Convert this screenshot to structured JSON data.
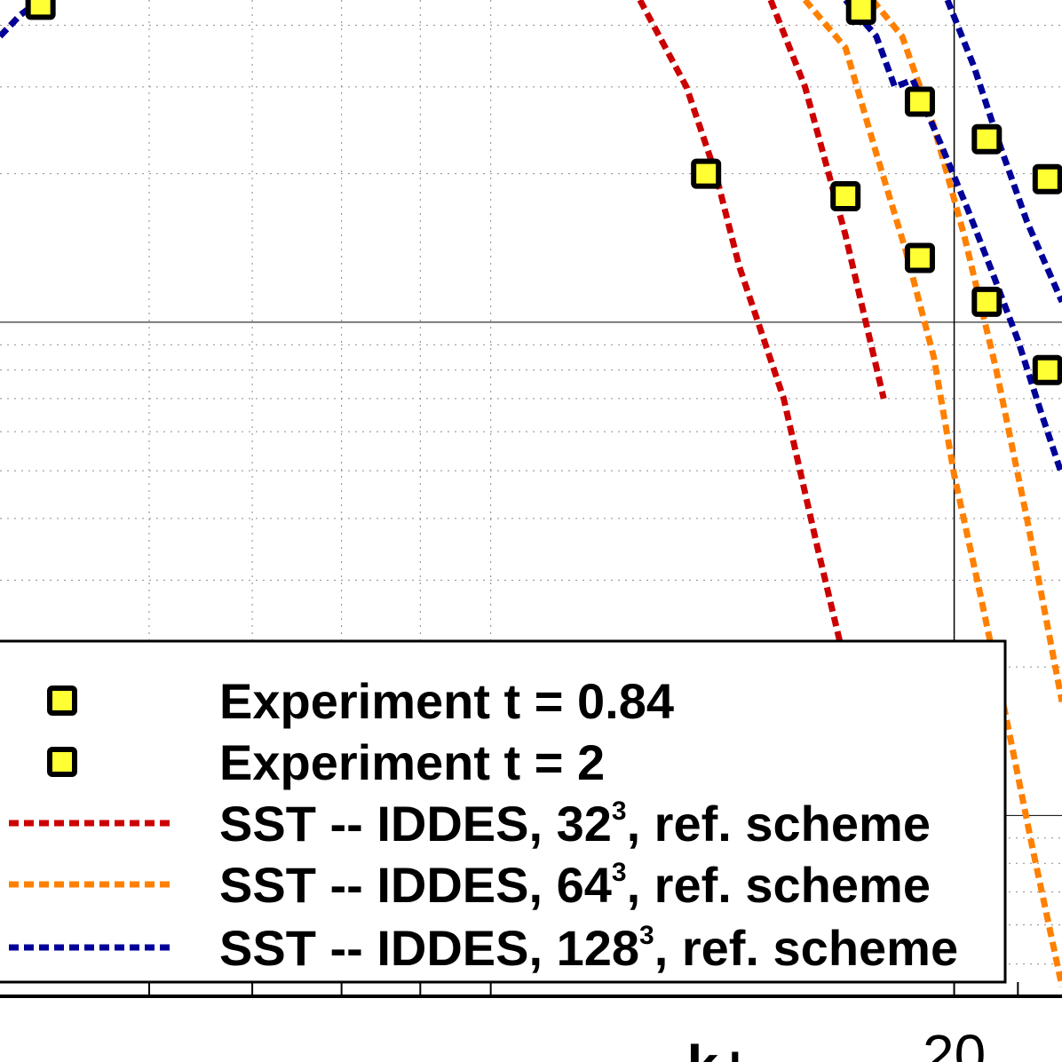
{
  "chart_data": {
    "type": "line",
    "title": "",
    "xlabel": "k+",
    "ylabel": "",
    "x_scale": "log",
    "y_scale": "log",
    "xlim": [
      4.8,
      23.5
    ],
    "ylim": [
      0.0043,
      0.45
    ],
    "x_tick_labels": [
      {
        "value": 20,
        "label": "20"
      }
    ],
    "grid": true,
    "legend_placement": "bottom-left",
    "colors": {
      "experiment_fill": "#ffff33",
      "experiment_edge": "#000000",
      "ref_32": "#cc0000",
      "ref_64": "#ff8000",
      "ref_128": "#000099"
    },
    "series": [
      {
        "name": "Experiment t = 0.84",
        "kind": "marker",
        "color": "#ffff33",
        "x": [
          5.1,
          13.8,
          17.4,
          19.0,
          21.0,
          23.0
        ],
        "y": [
          0.44,
          0.2,
          0.43,
          0.28,
          0.235,
          0.195
        ]
      },
      {
        "name": "Experiment t = 2",
        "kind": "marker",
        "color": "#ffff33",
        "x": [
          17.0,
          19.0,
          21.0,
          23.0
        ],
        "y": [
          0.18,
          0.135,
          0.11,
          0.08
        ]
      },
      {
        "name": "SST -- IDDES, 32",
        "exponent": "3",
        "suffix": ", ref. scheme",
        "kind": "dashed-line",
        "color": "#cc0000",
        "segments": [
          {
            "x": [
              4.8,
              4.95,
              5.1
            ],
            "y": [
              0.38,
              0.42,
              0.45
            ]
          },
          {
            "x": [
              12.5,
              13.4,
              14.0,
              14.5,
              15.5,
              16.3,
              17.3,
              18.0
            ],
            "y": [
              0.45,
              0.3,
              0.2,
              0.13,
              0.07,
              0.035,
              0.016,
              0.0075
            ]
          },
          {
            "x": [
              15.2,
              16.0,
              17.0,
              18.0
            ],
            "y": [
              0.45,
              0.3,
              0.15,
              0.07
            ]
          }
        ]
      },
      {
        "name": "SST -- IDDES, 64",
        "exponent": "3",
        "suffix": ", ref. scheme",
        "kind": "dashed-line",
        "color": "#ff8000",
        "segments": [
          {
            "x": [
              4.8,
              4.95,
              5.1
            ],
            "y": [
              0.38,
              0.42,
              0.45
            ]
          },
          {
            "x": [
              16.0,
              17.0,
              17.8,
              18.6,
              19.4,
              20.0,
              20.8,
              21.6,
              22.5,
              23.5
            ],
            "y": [
              0.45,
              0.36,
              0.22,
              0.14,
              0.085,
              0.049,
              0.028,
              0.016,
              0.0085,
              0.0045
            ]
          },
          {
            "x": [
              17.7,
              18.5,
              19.4,
              20.3,
              21.3,
              22.3,
              23.5
            ],
            "y": [
              0.45,
              0.38,
              0.25,
              0.15,
              0.08,
              0.04,
              0.017
            ]
          }
        ]
      },
      {
        "name": "SST -- IDDES, 128",
        "exponent": "3",
        "suffix": ", ref. scheme",
        "kind": "dashed-line",
        "color": "#000099",
        "segments": [
          {
            "x": [
              4.8,
              4.95,
              5.1
            ],
            "y": [
              0.38,
              0.42,
              0.45
            ]
          },
          {
            "x": [
              17.0,
              17.8,
              18.3,
              18.8,
              19.6,
              20.4,
              21.2,
              22.0,
              22.8,
              23.5
            ],
            "y": [
              0.45,
              0.38,
              0.3,
              0.31,
              0.23,
              0.17,
              0.125,
              0.092,
              0.065,
              0.049
            ]
          },
          {
            "x": [
              19.8,
              20.6,
              21.4,
              22.3,
              23.5
            ],
            "y": [
              0.45,
              0.33,
              0.23,
              0.16,
              0.11
            ]
          }
        ]
      }
    ]
  }
}
